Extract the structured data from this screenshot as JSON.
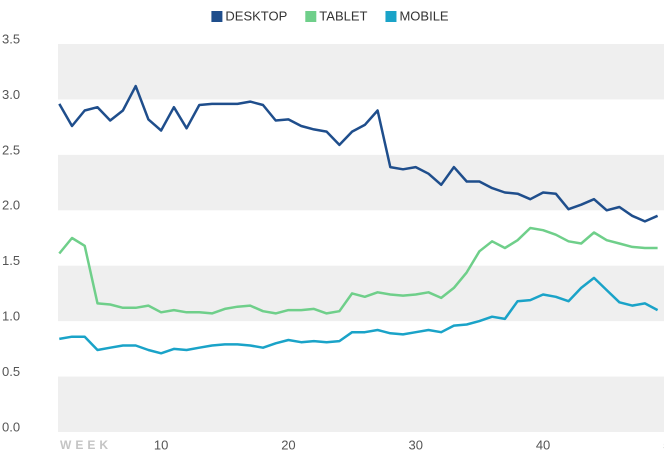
{
  "chart_data": {
    "type": "line",
    "x_label": "WEEK",
    "x": [
      2,
      3,
      4,
      5,
      6,
      7,
      8,
      9,
      10,
      11,
      12,
      13,
      14,
      15,
      16,
      17,
      18,
      19,
      20,
      21,
      22,
      23,
      24,
      25,
      26,
      27,
      28,
      29,
      30,
      31,
      32,
      33,
      34,
      35,
      36,
      37,
      38,
      39,
      40,
      41,
      42,
      43,
      44,
      45,
      46,
      47,
      48,
      49
    ],
    "series": [
      {
        "name": "DESKTOP",
        "color": "#1f4e8c",
        "values": [
          2.96,
          2.76,
          2.9,
          2.93,
          2.81,
          2.9,
          3.12,
          2.82,
          2.72,
          2.93,
          2.74,
          2.95,
          2.96,
          2.96,
          2.96,
          2.98,
          2.95,
          2.81,
          2.82,
          2.76,
          2.73,
          2.71,
          2.59,
          2.71,
          2.77,
          2.9,
          2.39,
          2.37,
          2.39,
          2.33,
          2.23,
          2.39,
          2.26,
          2.26,
          2.2,
          2.16,
          2.15,
          2.1,
          2.16,
          2.15,
          2.01,
          2.05,
          2.1,
          2.0,
          2.03,
          1.95,
          1.9,
          1.95
        ]
      },
      {
        "name": "TABLET",
        "color": "#6fcf8a",
        "values": [
          1.61,
          1.75,
          1.68,
          1.16,
          1.15,
          1.12,
          1.12,
          1.14,
          1.08,
          1.1,
          1.08,
          1.08,
          1.07,
          1.11,
          1.13,
          1.14,
          1.09,
          1.07,
          1.1,
          1.1,
          1.11,
          1.07,
          1.09,
          1.25,
          1.22,
          1.26,
          1.24,
          1.23,
          1.24,
          1.26,
          1.21,
          1.3,
          1.44,
          1.63,
          1.72,
          1.66,
          1.73,
          1.84,
          1.82,
          1.78,
          1.72,
          1.7,
          1.8,
          1.73,
          1.7,
          1.67,
          1.66,
          1.66
        ]
      },
      {
        "name": "MOBILE",
        "color": "#1aa3c8",
        "values": [
          0.84,
          0.86,
          0.86,
          0.74,
          0.76,
          0.78,
          0.78,
          0.74,
          0.71,
          0.75,
          0.74,
          0.76,
          0.78,
          0.79,
          0.79,
          0.78,
          0.76,
          0.8,
          0.83,
          0.81,
          0.82,
          0.81,
          0.82,
          0.9,
          0.9,
          0.92,
          0.89,
          0.88,
          0.9,
          0.92,
          0.9,
          0.96,
          0.97,
          1.0,
          1.04,
          1.02,
          1.18,
          1.19,
          1.24,
          1.22,
          1.18,
          1.3,
          1.39,
          1.28,
          1.17,
          1.14,
          1.16,
          1.1
        ]
      }
    ],
    "xlim": [
      1.9,
      49.5
    ],
    "xticks": [
      10,
      20,
      30,
      40,
      50
    ],
    "ylim": [
      0,
      3.5
    ],
    "yticks": [
      {
        "value": 0,
        "label": "0.0"
      },
      0.5,
      {
        "value": 1,
        "label": "1.0"
      },
      1.5,
      {
        "value": 2,
        "label": "2.0"
      },
      2.5,
      {
        "value": 3,
        "label": "3.0"
      },
      3.5
    ],
    "grid": "bands",
    "legend": "top"
  }
}
